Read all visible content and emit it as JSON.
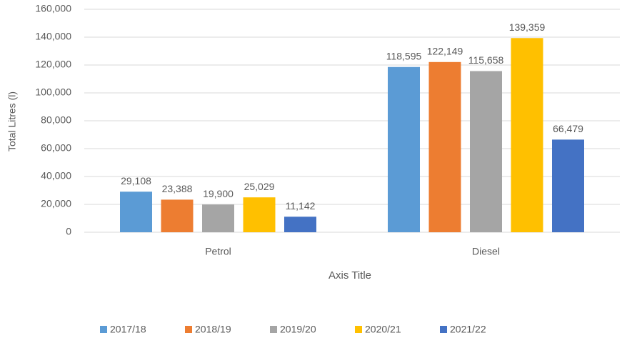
{
  "chart_data": {
    "type": "bar",
    "y_label": "Total Litres (l)",
    "x_label": "Axis Title",
    "categories": [
      "Petrol",
      "Diesel"
    ],
    "series": [
      {
        "name": "2017/18",
        "color": "#5b9bd5",
        "values": [
          29108,
          118595
        ],
        "value_labels": [
          "29,108",
          "118,595"
        ]
      },
      {
        "name": "2018/19",
        "color": "#ed7d31",
        "values": [
          23388,
          122149
        ],
        "value_labels": [
          "23,388",
          "122,149"
        ]
      },
      {
        "name": "2019/20",
        "color": "#a5a5a5",
        "values": [
          19900,
          115658
        ],
        "value_labels": [
          "19,900",
          "115,658"
        ]
      },
      {
        "name": "2020/21",
        "color": "#ffc000",
        "values": [
          25029,
          139359
        ],
        "value_labels": [
          "25,029",
          "139,359"
        ]
      },
      {
        "name": "2021/22",
        "color": "#4472c4",
        "values": [
          11142,
          66479
        ],
        "value_labels": [
          "11,142",
          "66,479"
        ]
      }
    ],
    "ylim": [
      0,
      160000
    ],
    "yticks": [
      0,
      {
        "value": 20000,
        "label": "20,000"
      },
      {
        "value": 40000,
        "label": "40,000"
      },
      {
        "value": 60000,
        "label": "60,000"
      },
      {
        "value": 80000,
        "label": "80,000"
      },
      {
        "value": 100000,
        "label": "100,000"
      },
      {
        "value": 120000,
        "label": "120,000"
      },
      {
        "value": 140000,
        "label": "140,000"
      },
      {
        "value": 160000,
        "label": "160,000"
      }
    ],
    "grid": true,
    "legend": "bottom"
  }
}
